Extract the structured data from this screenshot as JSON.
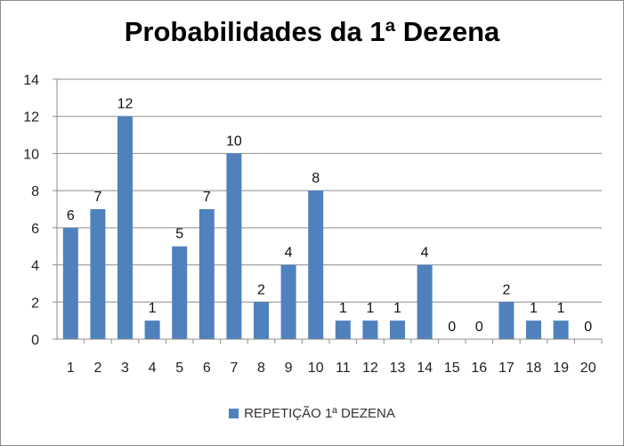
{
  "chart_data": {
    "type": "bar",
    "title": "Probabilidades da 1ª Dezena",
    "xlabel": "",
    "ylabel": "",
    "categories": [
      "1",
      "2",
      "3",
      "4",
      "5",
      "6",
      "7",
      "8",
      "9",
      "10",
      "11",
      "12",
      "13",
      "14",
      "15",
      "16",
      "17",
      "18",
      "19",
      "20"
    ],
    "series": [
      {
        "name": "REPETIÇÃO 1ª DEZENA",
        "values": [
          6,
          7,
          12,
          1,
          5,
          7,
          10,
          2,
          4,
          8,
          1,
          1,
          1,
          4,
          0,
          0,
          2,
          1,
          1,
          0
        ]
      }
    ],
    "ylim": [
      0,
      14
    ],
    "yticks": [
      "0",
      "2",
      "4",
      "6",
      "8",
      "10",
      "12",
      "14"
    ],
    "grid": true,
    "legend": "bottom",
    "data_labels": true,
    "colors": {
      "bar": "#4f81bd",
      "grid": "#8c8c8c"
    }
  }
}
